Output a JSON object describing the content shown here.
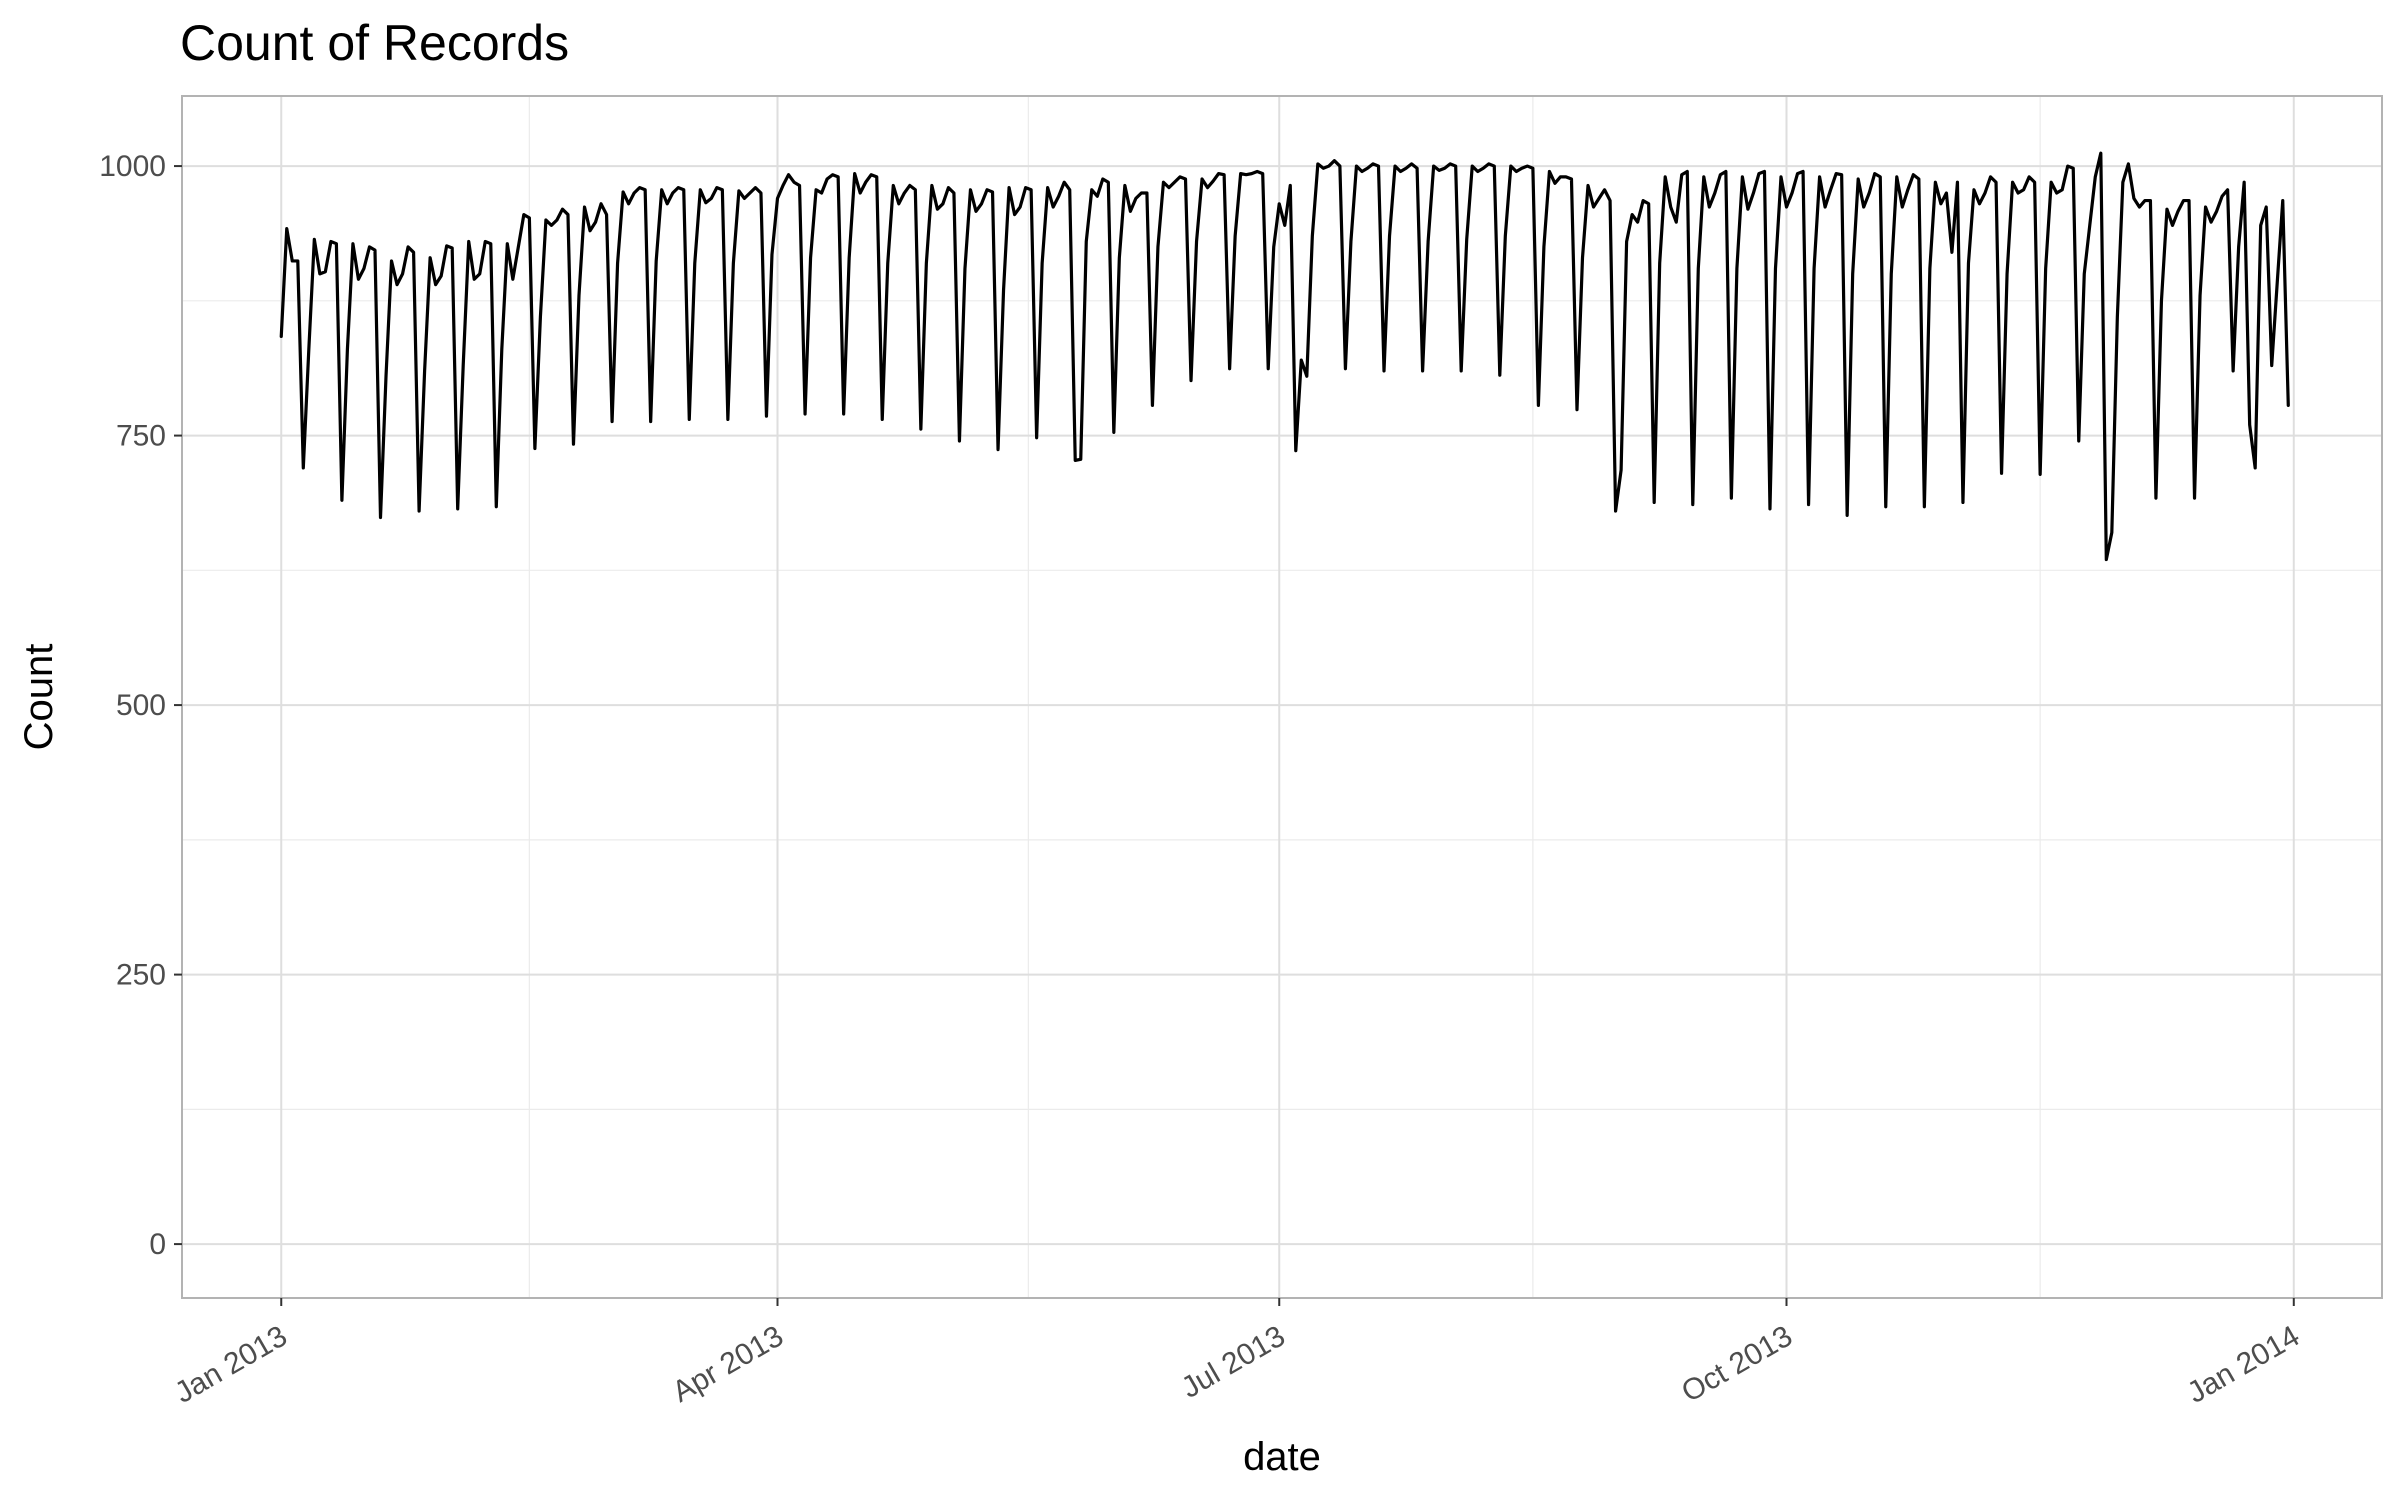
{
  "chart_data": {
    "type": "line",
    "title": "Count of Records",
    "xlabel": "date",
    "ylabel": "Count",
    "x_ticks": [
      {
        "date": "2013-01-01",
        "label": "Jan 2013"
      },
      {
        "date": "2013-04-01",
        "label": "Apr 2013"
      },
      {
        "date": "2013-07-01",
        "label": "Jul 2013"
      },
      {
        "date": "2013-10-01",
        "label": "Oct 2013"
      },
      {
        "date": "2014-01-01",
        "label": "Jan 2014"
      }
    ],
    "y_ticks": [
      0,
      250,
      500,
      750,
      1000
    ],
    "xlim": [
      "2012-12-14",
      "2014-01-17"
    ],
    "ylim": [
      -50,
      1065
    ],
    "grid": true,
    "line_color": "#000000",
    "series": [
      {
        "x_start": "2013-01-01",
        "x_step_days": 1,
        "values": [
          842,
          942,
          912,
          912,
          720,
          830,
          932,
          900,
          902,
          930,
          928,
          690,
          830,
          928,
          895,
          905,
          925,
          922,
          674,
          805,
          912,
          890,
          900,
          925,
          920,
          680,
          810,
          915,
          890,
          898,
          926,
          924,
          682,
          815,
          930,
          895,
          900,
          930,
          928,
          684,
          830,
          928,
          895,
          925,
          955,
          952,
          738,
          860,
          950,
          945,
          950,
          960,
          955,
          742,
          880,
          962,
          940,
          948,
          965,
          955,
          763,
          910,
          976,
          965,
          975,
          980,
          978,
          763,
          912,
          978,
          965,
          975,
          980,
          978,
          765,
          910,
          978,
          966,
          970,
          980,
          978,
          765,
          910,
          977,
          970,
          975,
          980,
          975,
          768,
          918,
          970,
          982,
          992,
          985,
          982,
          770,
          915,
          978,
          975,
          988,
          992,
          990,
          770,
          915,
          993,
          975,
          985,
          992,
          990,
          765,
          910,
          982,
          965,
          975,
          982,
          978,
          756,
          910,
          982,
          960,
          965,
          980,
          975,
          745,
          905,
          978,
          958,
          965,
          978,
          976,
          737,
          885,
          980,
          955,
          962,
          980,
          978,
          748,
          910,
          980,
          962,
          972,
          985,
          978,
          727,
          728,
          930,
          978,
          972,
          988,
          985,
          753,
          915,
          982,
          958,
          970,
          975,
          975,
          778,
          925,
          985,
          980,
          985,
          990,
          988,
          801,
          930,
          988,
          980,
          986,
          993,
          992,
          812,
          935,
          993,
          992,
          993,
          995,
          993,
          812,
          925,
          965,
          945,
          982,
          736,
          820,
          805,
          935,
          1002,
          998,
          1000,
          1005,
          1000,
          812,
          930,
          1000,
          995,
          998,
          1002,
          1000,
          810,
          935,
          1000,
          995,
          998,
          1002,
          998,
          810,
          930,
          1000,
          996,
          998,
          1002,
          1000,
          810,
          932,
          1000,
          995,
          998,
          1002,
          1000,
          806,
          935,
          1000,
          995,
          998,
          1000,
          998,
          778,
          925,
          995,
          984,
          990,
          990,
          988,
          774,
          915,
          982,
          962,
          970,
          978,
          968,
          680,
          718,
          930,
          955,
          948,
          968,
          965,
          688,
          910,
          990,
          962,
          948,
          992,
          995,
          686,
          905,
          990,
          962,
          975,
          992,
          995,
          692,
          905,
          990,
          960,
          975,
          993,
          995,
          682,
          905,
          990,
          962,
          975,
          993,
          995,
          686,
          905,
          990,
          962,
          978,
          993,
          992,
          676,
          900,
          988,
          962,
          975,
          993,
          990,
          684,
          900,
          990,
          962,
          978,
          992,
          988,
          684,
          905,
          985,
          965,
          975,
          920,
          985,
          688,
          910,
          978,
          965,
          975,
          990,
          985,
          715,
          900,
          985,
          975,
          978,
          990,
          985,
          714,
          905,
          985,
          975,
          978,
          1000,
          998,
          745,
          900,
          945,
          990,
          1012,
          635,
          660,
          860,
          985,
          1002,
          970,
          962,
          968,
          968,
          692,
          875,
          960,
          945,
          958,
          968,
          968,
          692,
          880,
          962,
          948,
          958,
          972,
          978,
          810,
          925,
          985,
          760,
          720,
          945,
          962,
          815,
          892,
          968,
          778
        ]
      }
    ]
  }
}
